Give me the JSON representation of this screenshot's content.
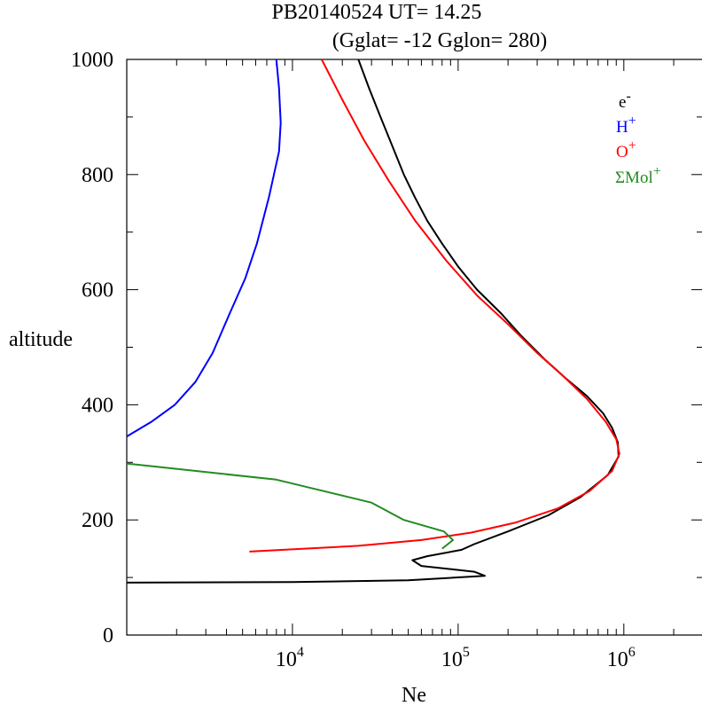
{
  "chart_data": {
    "type": "line",
    "title_line1": "PB20140524   UT=  14.25",
    "title_line2": "(Gglat= -12   Gglon=  280)",
    "xlabel": "Ne",
    "ylabel": "altitude",
    "x_scale": "log",
    "xlim": [
      1000,
      3000000
    ],
    "ylim": [
      0,
      1000
    ],
    "x_ticks": [
      {
        "base": "10",
        "exp": "4",
        "value": 10000
      },
      {
        "base": "10",
        "exp": "5",
        "value": 100000
      },
      {
        "base": "10",
        "exp": "6",
        "value": 1000000
      }
    ],
    "y_ticks": [
      {
        "label": "0",
        "value": 0
      },
      {
        "label": "200",
        "value": 200
      },
      {
        "label": "400",
        "value": 400
      },
      {
        "label": "600",
        "value": 600
      },
      {
        "label": "800",
        "value": 800
      },
      {
        "label": "1000",
        "value": 1000
      }
    ],
    "legend_position": "top-right",
    "series": [
      {
        "name": "e",
        "sup": "-",
        "color": "#000000",
        "points": [
          [
            1000,
            91
          ],
          [
            10000,
            92
          ],
          [
            50000,
            95
          ],
          [
            75000,
            98
          ],
          [
            145000,
            103
          ],
          [
            125000,
            110
          ],
          [
            60000,
            120
          ],
          [
            53000,
            130
          ],
          [
            65000,
            137
          ],
          [
            105000,
            148
          ],
          [
            125000,
            158
          ],
          [
            200000,
            180
          ],
          [
            350000,
            208
          ],
          [
            550000,
            240
          ],
          [
            800000,
            278
          ],
          [
            930000,
            310
          ],
          [
            920000,
            335
          ],
          [
            850000,
            360
          ],
          [
            750000,
            385
          ],
          [
            600000,
            415
          ],
          [
            450000,
            445
          ],
          [
            330000,
            480
          ],
          [
            240000,
            520
          ],
          [
            180000,
            560
          ],
          [
            130000,
            600
          ],
          [
            100000,
            640
          ],
          [
            80000,
            680
          ],
          [
            65000,
            720
          ],
          [
            55000,
            760
          ],
          [
            47000,
            800
          ],
          [
            40000,
            850
          ],
          [
            34000,
            900
          ],
          [
            29000,
            950
          ],
          [
            25000,
            1000
          ]
        ]
      },
      {
        "name": "H",
        "sup": "+",
        "color": "#0000ff",
        "points": [
          [
            1000,
            345
          ],
          [
            1400,
            370
          ],
          [
            1950,
            400
          ],
          [
            2600,
            440
          ],
          [
            3300,
            490
          ],
          [
            4200,
            560
          ],
          [
            5200,
            620
          ],
          [
            6100,
            680
          ],
          [
            7200,
            760
          ],
          [
            8300,
            840
          ],
          [
            8500,
            890
          ],
          [
            8300,
            950
          ],
          [
            8000,
            1000
          ]
        ]
      },
      {
        "name": "O",
        "sup": "+",
        "color": "#ff0000",
        "points": [
          [
            5500,
            145
          ],
          [
            25000,
            155
          ],
          [
            60000,
            165
          ],
          [
            120000,
            178
          ],
          [
            220000,
            195
          ],
          [
            400000,
            220
          ],
          [
            620000,
            250
          ],
          [
            850000,
            285
          ],
          [
            940000,
            315
          ],
          [
            900000,
            340
          ],
          [
            780000,
            370
          ],
          [
            600000,
            410
          ],
          [
            430000,
            450
          ],
          [
            300000,
            490
          ],
          [
            200000,
            540
          ],
          [
            130000,
            590
          ],
          [
            85000,
            650
          ],
          [
            55000,
            720
          ],
          [
            38000,
            790
          ],
          [
            27000,
            860
          ],
          [
            20000,
            930
          ],
          [
            15000,
            1000
          ]
        ]
      },
      {
        "name": "ΣMol",
        "sup": "+",
        "color": "#228b22",
        "points": [
          [
            1000,
            298
          ],
          [
            8000,
            270
          ],
          [
            30000,
            230
          ],
          [
            47000,
            200
          ],
          [
            82000,
            180
          ],
          [
            93000,
            165
          ],
          [
            80000,
            150
          ]
        ]
      }
    ]
  }
}
